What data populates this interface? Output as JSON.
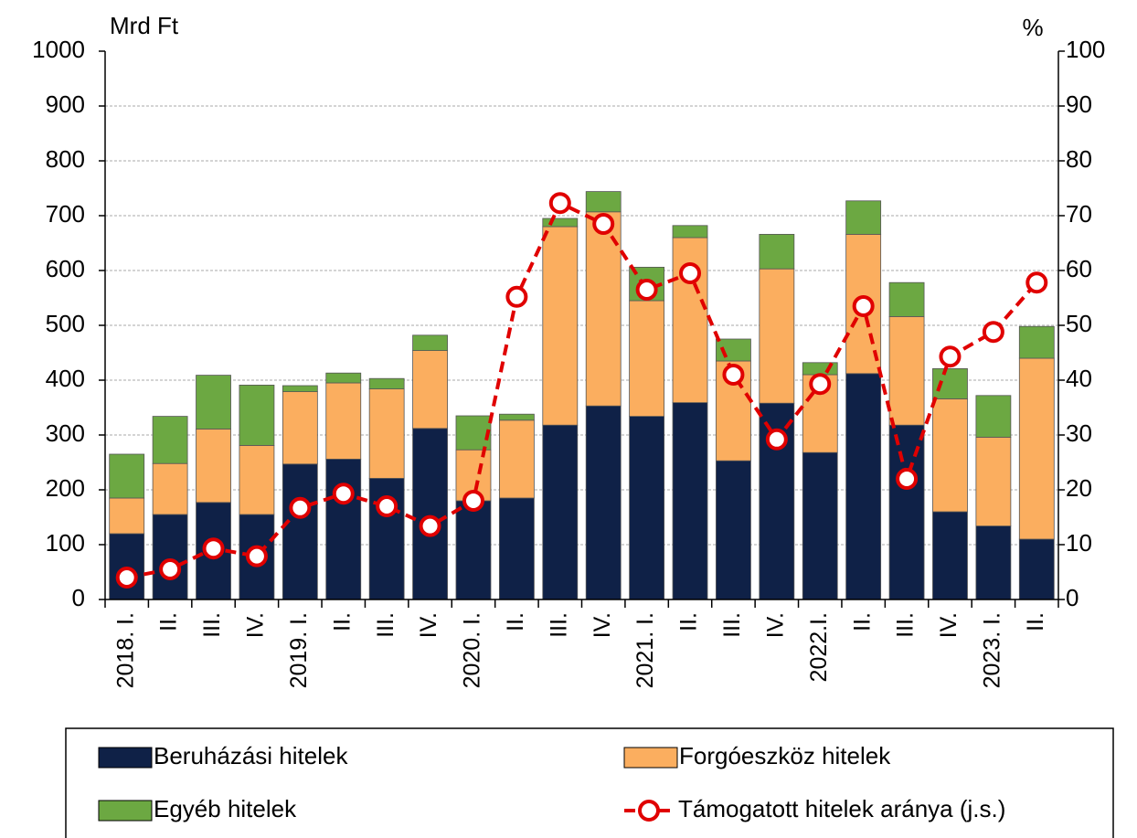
{
  "chart_data": {
    "type": "bar",
    "stacked": true,
    "y_label": "Mrd Ft",
    "y2_label": "%",
    "categories": [
      "2018. I.",
      "II.",
      "III.",
      "IV.",
      "2019. I.",
      "II.",
      "III.",
      "IV.",
      "2020. I.",
      "II.",
      "III.",
      "IV.",
      "2021. I.",
      "II.",
      "III.",
      "IV.",
      "2022.I.",
      "II.",
      "III.",
      "IV.",
      "2023. I.",
      "II."
    ],
    "series": [
      {
        "name": "Beruházási hitelek",
        "type": "bar",
        "color": "#0f2147",
        "values": [
          120,
          155,
          177,
          155,
          247,
          256,
          221,
          312,
          180,
          185,
          318,
          353,
          334,
          359,
          253,
          358,
          268,
          412,
          318,
          160,
          134,
          110
        ]
      },
      {
        "name": "Forgóeszköz hitelek",
        "type": "bar",
        "color": "#fbae5f",
        "values": [
          65,
          93,
          134,
          126,
          132,
          139,
          163,
          142,
          93,
          142,
          362,
          354,
          211,
          301,
          182,
          245,
          142,
          254,
          198,
          206,
          162,
          330
        ]
      },
      {
        "name": "Egyéb hitelek",
        "type": "bar",
        "color": "#6ca842",
        "values": [
          80,
          86,
          98,
          110,
          11,
          18,
          19,
          28,
          62,
          11,
          15,
          37,
          61,
          22,
          40,
          63,
          22,
          61,
          62,
          55,
          76,
          58
        ]
      },
      {
        "name": "Támogatott hitelek aránya (j.s.)",
        "type": "line",
        "axis": "y2",
        "color": "#e00000",
        "values": [
          4,
          5.5,
          9.3,
          7.9,
          16.7,
          19.3,
          17,
          13.4,
          18,
          55.2,
          72.3,
          68.5,
          56.5,
          59.5,
          41,
          29.2,
          39.3,
          53.5,
          22,
          44.3,
          48.8,
          57.8
        ]
      }
    ],
    "ylim": [
      0,
      1000
    ],
    "yticks": [
      0,
      100,
      200,
      300,
      400,
      500,
      600,
      700,
      800,
      900,
      1000
    ],
    "y2lim": [
      0,
      100
    ],
    "y2ticks": [
      0,
      10,
      20,
      30,
      40,
      50,
      60,
      70,
      80,
      90,
      100
    ],
    "grid": true,
    "legend": "bottom"
  }
}
